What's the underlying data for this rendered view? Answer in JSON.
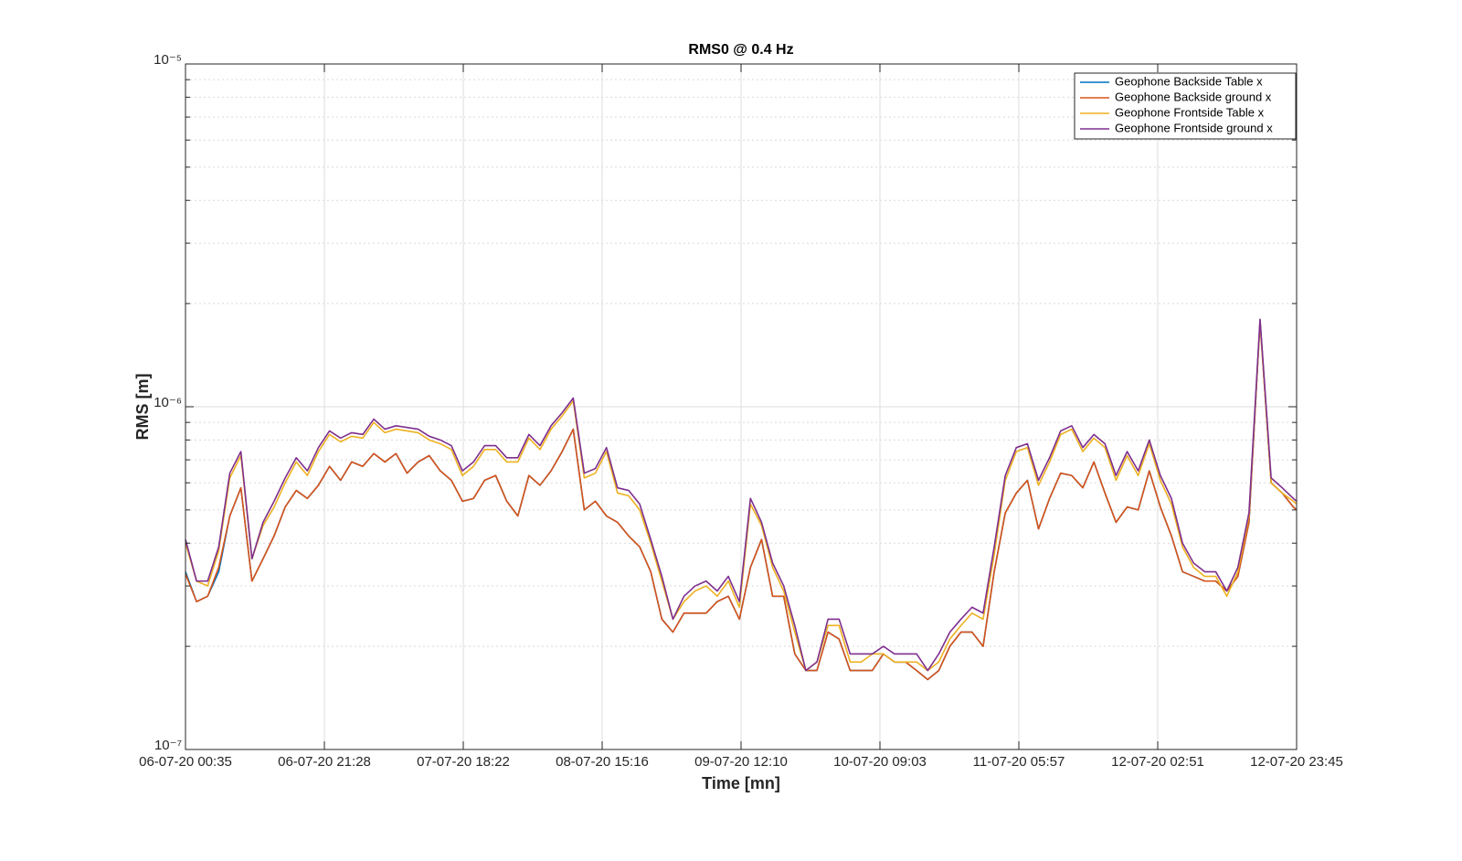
{
  "chart_data": {
    "type": "line",
    "title": "RMS0 @ 0.4 Hz",
    "x_label": "Time [mn]",
    "y_label": "RMS [m]",
    "log_y": true,
    "grid": true,
    "minor_grid": true,
    "legend": "northeast",
    "x": [
      0,
      100,
      200,
      300,
      400,
      500,
      600,
      700,
      800,
      900,
      1000,
      1100,
      1200,
      1300,
      1400,
      1500,
      1600,
      1700,
      1800,
      1900,
      2000,
      2100,
      2200,
      2300,
      2400,
      2500,
      2600,
      2700,
      2800,
      2900,
      3000,
      3100,
      3200,
      3300,
      3400,
      3500,
      3600,
      3700,
      3800,
      3900,
      4000,
      4100,
      4200,
      4300,
      4400,
      4500,
      4600,
      4700,
      4800,
      4900,
      5000,
      5100,
      5200,
      5300,
      5400,
      5500,
      5600,
      5700,
      5800,
      5900,
      6000,
      6100,
      6200,
      6300,
      6400,
      6500,
      6600,
      6700,
      6800,
      6900,
      7000,
      7100,
      7200,
      7300,
      7400,
      7500,
      7600,
      7700,
      7800,
      7900,
      8000,
      8100,
      8200,
      8300,
      8400,
      8500,
      8600,
      8700,
      8800,
      8900,
      9000,
      9100,
      9200,
      9300,
      9400,
      9500,
      9600,
      9700,
      9800,
      9900,
      10000,
      10030
    ],
    "xlim": [
      0,
      10030
    ],
    "xticks": [
      {
        "value": 0,
        "label": "06-07-20 00:35"
      },
      {
        "value": 1253.75,
        "label": "06-07-20 21:28"
      },
      {
        "value": 2507.5,
        "label": "07-07-20 18:22"
      },
      {
        "value": 3761.25,
        "label": "08-07-20 15:16"
      },
      {
        "value": 5015,
        "label": "09-07-20 12:10"
      },
      {
        "value": 6268.75,
        "label": "10-07-20 09:03"
      },
      {
        "value": 7522.5,
        "label": "11-07-20 05:57"
      },
      {
        "value": 8776.25,
        "label": "12-07-20 02:51"
      },
      {
        "value": 10030,
        "label": "12-07-20 23:45"
      }
    ],
    "ylim": [
      1e-07,
      1e-05
    ],
    "yticks": [
      {
        "value": 1e-07,
        "label": "10⁻⁷"
      },
      {
        "value": 1e-06,
        "label": "10⁻⁶"
      },
      {
        "value": 1e-05,
        "label": "10⁻⁵"
      }
    ],
    "series": [
      {
        "name": "Geophone Backside Table x",
        "color": "#0072BD",
        "values": [
          3.3e-07,
          2.7e-07,
          2.8e-07,
          3.3e-07,
          4.8e-07,
          5.8e-07,
          3.1e-07,
          3.6e-07,
          4.2e-07,
          5.1e-07,
          5.7e-07,
          5.4e-07,
          5.9e-07,
          6.7e-07,
          6.1e-07,
          6.9e-07,
          6.7e-07,
          7.3e-07,
          6.9e-07,
          7.3e-07,
          6.4e-07,
          6.9e-07,
          7.2e-07,
          6.5e-07,
          6.1e-07,
          5.3e-07,
          5.4e-07,
          6.1e-07,
          6.3e-07,
          5.3e-07,
          4.8e-07,
          6.3e-07,
          5.9e-07,
          6.5e-07,
          7.4e-07,
          8.6e-07,
          5e-07,
          5.3e-07,
          4.8e-07,
          4.6e-07,
          4.2e-07,
          3.9e-07,
          3.3e-07,
          2.4e-07,
          2.2e-07,
          2.5e-07,
          2.5e-07,
          2.5e-07,
          2.7e-07,
          2.8e-07,
          2.4e-07,
          3.4e-07,
          4.1e-07,
          2.8e-07,
          2.8e-07,
          1.9e-07,
          1.7e-07,
          1.7e-07,
          2.2e-07,
          2.1e-07,
          1.7e-07,
          1.7e-07,
          1.7e-07,
          1.9e-07,
          1.8e-07,
          1.8e-07,
          1.7e-07,
          1.6e-07,
          1.7e-07,
          2e-07,
          2.2e-07,
          2.2e-07,
          2e-07,
          3.3e-07,
          4.9e-07,
          5.6e-07,
          6.1e-07,
          4.4e-07,
          5.4e-07,
          6.4e-07,
          6.3e-07,
          5.8e-07,
          6.9e-07,
          5.6e-07,
          4.6e-07,
          5.1e-07,
          5e-07,
          6.5e-07,
          5.1e-07,
          4.2e-07,
          3.3e-07,
          3.2e-07,
          3.1e-07,
          3.1e-07,
          2.9e-07,
          3.2e-07,
          4.6e-07,
          1.78e-06,
          6e-07,
          5.6e-07,
          5.1e-07,
          5e-07
        ]
      },
      {
        "name": "Geophone Backside ground x",
        "color": "#D95319",
        "values": [
          3.25e-07,
          2.7e-07,
          2.8e-07,
          3.4e-07,
          4.8e-07,
          5.8e-07,
          3.1e-07,
          3.6e-07,
          4.2e-07,
          5.1e-07,
          5.7e-07,
          5.4e-07,
          5.9e-07,
          6.7e-07,
          6.1e-07,
          6.9e-07,
          6.7e-07,
          7.3e-07,
          6.9e-07,
          7.3e-07,
          6.4e-07,
          6.9e-07,
          7.2e-07,
          6.5e-07,
          6.1e-07,
          5.3e-07,
          5.4e-07,
          6.1e-07,
          6.3e-07,
          5.3e-07,
          4.8e-07,
          6.3e-07,
          5.9e-07,
          6.5e-07,
          7.4e-07,
          8.6e-07,
          5e-07,
          5.3e-07,
          4.8e-07,
          4.6e-07,
          4.2e-07,
          3.9e-07,
          3.3e-07,
          2.4e-07,
          2.2e-07,
          2.5e-07,
          2.5e-07,
          2.5e-07,
          2.7e-07,
          2.8e-07,
          2.4e-07,
          3.4e-07,
          4.1e-07,
          2.8e-07,
          2.8e-07,
          1.9e-07,
          1.7e-07,
          1.7e-07,
          2.2e-07,
          2.1e-07,
          1.7e-07,
          1.7e-07,
          1.7e-07,
          1.9e-07,
          1.8e-07,
          1.8e-07,
          1.7e-07,
          1.6e-07,
          1.7e-07,
          2e-07,
          2.2e-07,
          2.2e-07,
          2e-07,
          3.3e-07,
          4.9e-07,
          5.6e-07,
          6.1e-07,
          4.4e-07,
          5.4e-07,
          6.4e-07,
          6.3e-07,
          5.8e-07,
          6.9e-07,
          5.6e-07,
          4.6e-07,
          5.1e-07,
          5e-07,
          6.5e-07,
          5.1e-07,
          4.2e-07,
          3.3e-07,
          3.2e-07,
          3.1e-07,
          3.1e-07,
          2.9e-07,
          3.2e-07,
          4.6e-07,
          1.78e-06,
          6e-07,
          5.6e-07,
          5.1e-07,
          5e-07
        ]
      },
      {
        "name": "Geophone Frontside Table x",
        "color": "#EDB120",
        "values": [
          4e-07,
          3.1e-07,
          3e-07,
          3.8e-07,
          6.2e-07,
          7.2e-07,
          3.6e-07,
          4.5e-07,
          5.1e-07,
          6e-07,
          6.9e-07,
          6.3e-07,
          7.4e-07,
          8.3e-07,
          7.9e-07,
          8.2e-07,
          8.1e-07,
          9e-07,
          8.4e-07,
          8.6e-07,
          8.5e-07,
          8.4e-07,
          8e-07,
          7.8e-07,
          7.5e-07,
          6.3e-07,
          6.7e-07,
          7.5e-07,
          7.5e-07,
          6.9e-07,
          6.9e-07,
          8.1e-07,
          7.5e-07,
          8.6e-07,
          9.4e-07,
          1.04e-06,
          6.2e-07,
          6.4e-07,
          7.4e-07,
          5.6e-07,
          5.5e-07,
          5e-07,
          4e-07,
          3.1e-07,
          2.4e-07,
          2.7e-07,
          2.9e-07,
          3e-07,
          2.8e-07,
          3.1e-07,
          2.6e-07,
          5.2e-07,
          4.5e-07,
          3.4e-07,
          2.9e-07,
          2.2e-07,
          1.7e-07,
          1.8e-07,
          2.3e-07,
          2.3e-07,
          1.8e-07,
          1.8e-07,
          1.9e-07,
          1.9e-07,
          1.8e-07,
          1.8e-07,
          1.8e-07,
          1.7e-07,
          1.8e-07,
          2.1e-07,
          2.3e-07,
          2.5e-07,
          2.4e-07,
          3.7e-07,
          6.1e-07,
          7.4e-07,
          7.6e-07,
          5.9e-07,
          6.9e-07,
          8.3e-07,
          8.6e-07,
          7.4e-07,
          8.1e-07,
          7.6e-07,
          6.1e-07,
          7.2e-07,
          6.3e-07,
          7.8e-07,
          6.1e-07,
          5.2e-07,
          3.9e-07,
          3.4e-07,
          3.2e-07,
          3.2e-07,
          2.8e-07,
          3.3e-07,
          4.8e-07,
          1.76e-06,
          6e-07,
          5.6e-07,
          5.3e-07,
          5.2e-07
        ]
      },
      {
        "name": "Geophone Frontside ground x",
        "color": "#7E2F8E",
        "values": [
          4.1e-07,
          3.1e-07,
          3.1e-07,
          3.9e-07,
          6.4e-07,
          7.4e-07,
          3.6e-07,
          4.6e-07,
          5.3e-07,
          6.2e-07,
          7.1e-07,
          6.5e-07,
          7.6e-07,
          8.5e-07,
          8.1e-07,
          8.4e-07,
          8.3e-07,
          9.2e-07,
          8.6e-07,
          8.8e-07,
          8.7e-07,
          8.6e-07,
          8.2e-07,
          8e-07,
          7.7e-07,
          6.5e-07,
          6.9e-07,
          7.7e-07,
          7.7e-07,
          7.1e-07,
          7.1e-07,
          8.3e-07,
          7.7e-07,
          8.8e-07,
          9.6e-07,
          1.06e-06,
          6.4e-07,
          6.6e-07,
          7.6e-07,
          5.8e-07,
          5.7e-07,
          5.2e-07,
          4.1e-07,
          3.2e-07,
          2.4e-07,
          2.8e-07,
          3e-07,
          3.1e-07,
          2.9e-07,
          3.2e-07,
          2.7e-07,
          5.4e-07,
          4.6e-07,
          3.5e-07,
          3e-07,
          2.3e-07,
          1.7e-07,
          1.8e-07,
          2.4e-07,
          2.4e-07,
          1.9e-07,
          1.9e-07,
          1.9e-07,
          2e-07,
          1.9e-07,
          1.9e-07,
          1.9e-07,
          1.7e-07,
          1.9e-07,
          2.2e-07,
          2.4e-07,
          2.6e-07,
          2.5e-07,
          3.9e-07,
          6.3e-07,
          7.6e-07,
          7.8e-07,
          6.1e-07,
          7.1e-07,
          8.5e-07,
          8.8e-07,
          7.6e-07,
          8.3e-07,
          7.8e-07,
          6.3e-07,
          7.4e-07,
          6.5e-07,
          8e-07,
          6.3e-07,
          5.4e-07,
          4e-07,
          3.5e-07,
          3.3e-07,
          3.3e-07,
          2.9e-07,
          3.4e-07,
          4.9e-07,
          1.8e-06,
          6.2e-07,
          5.8e-07,
          5.4e-07,
          5.3e-07
        ]
      }
    ]
  }
}
